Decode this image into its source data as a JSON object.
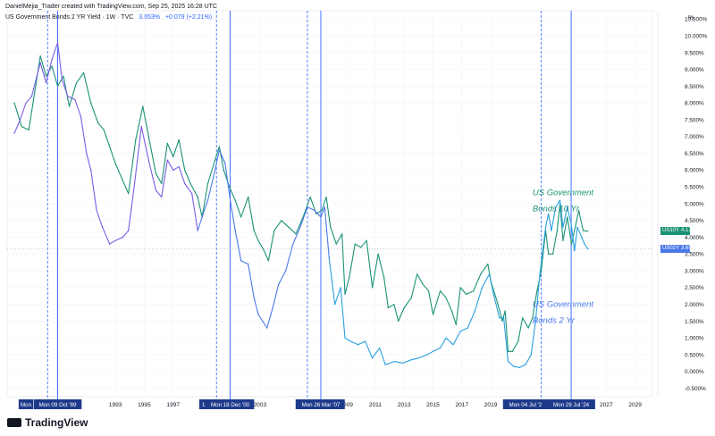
{
  "header": {
    "line1": "DanielMejia_Trader created with TradingView.com, Sep 25, 2025 16:28 UTC",
    "title": "US Government Bonds 2 YR Yield · 1W · TVC",
    "value": "3.653%",
    "change": "+0.079 (+2.21%)"
  },
  "brand": "TradingView",
  "colors": {
    "us10y": "#1a9276",
    "us02y_early": "#7b5ce6",
    "us02y_mid": "#4a79e8",
    "us02y_late": "#2aa0e0",
    "vline": "#2962ff",
    "label_bg": "#1e3a8a",
    "grid": "#f0f3fa"
  },
  "badges": {
    "us10y_label": "US10Y",
    "us10y_value": "4.178%",
    "us02y_label": "US02Y",
    "us02y_value": "3.653%"
  },
  "chart_data": {
    "type": "line",
    "y_unit": "%",
    "ylim": [
      -0.75,
      10.75
    ],
    "xlim": [
      1985.5,
      2030.2
    ],
    "y_ticks": [
      "10.500%",
      "10.000%",
      "9.500%",
      "9.000%",
      "8.500%",
      "8.000%",
      "7.500%",
      "7.000%",
      "6.500%",
      "6.000%",
      "5.500%",
      "5.000%",
      "4.500%",
      "4.000%",
      "3.500%",
      "3.000%",
      "2.500%",
      "2.000%",
      "1.500%",
      "1.000%",
      "0.500%",
      "0.000%",
      "-0.500%"
    ],
    "x_ticks": [
      "1993",
      "1995",
      "1997",
      "2003",
      "2009",
      "2011",
      "2013",
      "2015",
      "2017",
      "2019",
      "2027",
      "2029"
    ],
    "date_labels": [
      {
        "x": 1989.0,
        "text": "Mon 09 Oct '89"
      },
      {
        "x": 2000.95,
        "text": "Mon 18 Dec '00"
      },
      {
        "x": 2007.23,
        "text": "Mon 26 Mar '07"
      },
      {
        "x": 2024.57,
        "text": "Mon 29 Jul '24"
      }
    ],
    "date_labels_partial": [
      {
        "x": 1986.8,
        "text": "Mon"
      },
      {
        "x": 1999.1,
        "text": "1"
      },
      {
        "x": 2006.3,
        "text": "Mon 1("
      },
      {
        "x": 2021.4,
        "text": "Mon 04 Jul '2"
      }
    ],
    "vlines_solid": [
      1989.0,
      2000.95,
      2007.23,
      2024.57
    ],
    "vlines_dashed": [
      1988.3,
      2000.0,
      2006.3,
      2022.5
    ],
    "annotations": [
      {
        "text": "US Government",
        "x": 2021.9,
        "y": 5.25,
        "color": "#1a9276"
      },
      {
        "text": "Bonds 10 Yr",
        "x": 2021.9,
        "y": 4.78,
        "color": "#1a9276"
      },
      {
        "text": "US Government",
        "x": 2021.9,
        "y": 1.92,
        "color": "#4a79e8"
      },
      {
        "text": "Bonds 2 Yr",
        "x": 2021.9,
        "y": 1.45,
        "color": "#4a79e8"
      }
    ],
    "series": [
      {
        "name": "US10Y",
        "points": [
          [
            1986.0,
            8.0
          ],
          [
            1986.5,
            7.3
          ],
          [
            1987.0,
            7.2
          ],
          [
            1987.4,
            8.3
          ],
          [
            1987.8,
            9.4
          ],
          [
            1988.2,
            8.8
          ],
          [
            1988.6,
            9.1
          ],
          [
            1989.0,
            8.5
          ],
          [
            1989.4,
            8.8
          ],
          [
            1989.8,
            7.9
          ],
          [
            1990.3,
            8.6
          ],
          [
            1990.8,
            8.9
          ],
          [
            1991.3,
            8.0
          ],
          [
            1991.8,
            7.4
          ],
          [
            1992.2,
            7.2
          ],
          [
            1992.6,
            6.7
          ],
          [
            1993.0,
            6.2
          ],
          [
            1993.5,
            5.7
          ],
          [
            1993.9,
            5.3
          ],
          [
            1994.4,
            6.9
          ],
          [
            1994.9,
            7.9
          ],
          [
            1995.3,
            7.0
          ],
          [
            1995.8,
            5.9
          ],
          [
            1996.2,
            5.6
          ],
          [
            1996.6,
            6.8
          ],
          [
            1997.0,
            6.4
          ],
          [
            1997.4,
            6.9
          ],
          [
            1997.8,
            6.0
          ],
          [
            1998.2,
            5.6
          ],
          [
            1998.7,
            5.2
          ],
          [
            1999.0,
            4.6
          ],
          [
            1999.4,
            5.6
          ],
          [
            1999.9,
            6.3
          ],
          [
            2000.2,
            6.7
          ],
          [
            2000.5,
            6.0
          ],
          [
            2000.9,
            5.5
          ],
          [
            2001.3,
            5.1
          ],
          [
            2001.7,
            4.6
          ],
          [
            2002.2,
            5.2
          ],
          [
            2002.6,
            4.2
          ],
          [
            2002.9,
            3.9
          ],
          [
            2003.3,
            3.6
          ],
          [
            2003.6,
            3.3
          ],
          [
            2004.0,
            4.2
          ],
          [
            2004.5,
            4.5
          ],
          [
            2005.0,
            4.3
          ],
          [
            2005.5,
            4.1
          ],
          [
            2006.0,
            4.6
          ],
          [
            2006.5,
            5.2
          ],
          [
            2006.9,
            4.7
          ],
          [
            2007.3,
            4.8
          ],
          [
            2007.6,
            5.2
          ],
          [
            2007.9,
            4.3
          ],
          [
            2008.3,
            3.8
          ],
          [
            2008.7,
            4.1
          ],
          [
            2008.9,
            2.3
          ],
          [
            2009.2,
            2.8
          ],
          [
            2009.6,
            3.8
          ],
          [
            2010.0,
            3.7
          ],
          [
            2010.4,
            3.9
          ],
          [
            2010.8,
            2.5
          ],
          [
            2011.2,
            3.5
          ],
          [
            2011.6,
            2.8
          ],
          [
            2011.9,
            1.9
          ],
          [
            2012.3,
            2.0
          ],
          [
            2012.6,
            1.5
          ],
          [
            2013.0,
            1.9
          ],
          [
            2013.5,
            2.2
          ],
          [
            2013.9,
            2.9
          ],
          [
            2014.3,
            2.6
          ],
          [
            2014.7,
            2.4
          ],
          [
            2015.0,
            1.7
          ],
          [
            2015.5,
            2.4
          ],
          [
            2015.9,
            2.2
          ],
          [
            2016.3,
            1.8
          ],
          [
            2016.6,
            1.4
          ],
          [
            2016.9,
            2.5
          ],
          [
            2017.3,
            2.3
          ],
          [
            2017.8,
            2.4
          ],
          [
            2018.3,
            2.9
          ],
          [
            2018.8,
            3.2
          ],
          [
            2019.0,
            2.7
          ],
          [
            2019.5,
            2.0
          ],
          [
            2019.8,
            1.5
          ],
          [
            2020.0,
            1.8
          ],
          [
            2020.2,
            0.6
          ],
          [
            2020.5,
            0.6
          ],
          [
            2020.9,
            0.9
          ],
          [
            2021.2,
            1.6
          ],
          [
            2021.6,
            1.3
          ],
          [
            2021.9,
            1.6
          ],
          [
            2022.2,
            2.4
          ],
          [
            2022.5,
            3.0
          ],
          [
            2022.8,
            4.2
          ],
          [
            2023.0,
            3.5
          ],
          [
            2023.3,
            3.5
          ],
          [
            2023.6,
            4.2
          ],
          [
            2023.8,
            5.0
          ],
          [
            2024.0,
            3.9
          ],
          [
            2024.3,
            4.6
          ],
          [
            2024.6,
            3.8
          ],
          [
            2024.9,
            4.4
          ],
          [
            2025.1,
            4.8
          ],
          [
            2025.4,
            4.2
          ],
          [
            2025.73,
            4.178
          ]
        ]
      },
      {
        "name": "US02Y",
        "points": [
          [
            1986.0,
            7.1
          ],
          [
            1986.4,
            7.5
          ],
          [
            1986.8,
            8.0
          ],
          [
            1987.2,
            8.2
          ],
          [
            1987.8,
            9.2
          ],
          [
            1988.2,
            8.6
          ],
          [
            1988.6,
            9.3
          ],
          [
            1989.0,
            9.8
          ],
          [
            1989.3,
            8.7
          ],
          [
            1989.7,
            8.2
          ],
          [
            1990.2,
            8.1
          ],
          [
            1990.6,
            7.6
          ],
          [
            1991.0,
            6.5
          ],
          [
            1991.3,
            6.0
          ],
          [
            1991.7,
            4.8
          ],
          [
            1992.1,
            4.3
          ],
          [
            1992.6,
            3.8
          ],
          [
            1993.0,
            3.9
          ],
          [
            1993.5,
            4.0
          ],
          [
            1993.9,
            4.2
          ],
          [
            1994.3,
            5.5
          ],
          [
            1994.8,
            7.3
          ],
          [
            1995.3,
            6.3
          ],
          [
            1995.8,
            5.4
          ],
          [
            1996.2,
            5.2
          ],
          [
            1996.6,
            6.3
          ],
          [
            1997.0,
            6.0
          ],
          [
            1997.4,
            6.1
          ],
          [
            1997.8,
            5.6
          ],
          [
            1998.3,
            5.3
          ],
          [
            1998.7,
            4.2
          ],
          [
            1999.0,
            4.6
          ],
          [
            1999.4,
            5.1
          ],
          [
            1999.9,
            6.0
          ],
          [
            2000.2,
            6.6
          ],
          [
            2000.6,
            6.2
          ],
          [
            2000.95,
            5.1
          ],
          [
            2001.3,
            4.2
          ],
          [
            2001.7,
            3.3
          ],
          [
            2002.2,
            3.2
          ],
          [
            2002.6,
            2.2
          ],
          [
            2002.9,
            1.7
          ],
          [
            2003.2,
            1.5
          ],
          [
            2003.5,
            1.3
          ],
          [
            2003.9,
            1.9
          ],
          [
            2004.3,
            2.6
          ],
          [
            2004.8,
            3.0
          ],
          [
            2005.3,
            3.8
          ],
          [
            2005.8,
            4.3
          ],
          [
            2006.3,
            4.9
          ],
          [
            2006.8,
            4.8
          ],
          [
            2007.23,
            4.6
          ],
          [
            2007.5,
            4.9
          ],
          [
            2007.8,
            3.4
          ],
          [
            2008.2,
            2.0
          ],
          [
            2008.6,
            2.5
          ],
          [
            2008.9,
            1.0
          ],
          [
            2009.3,
            0.9
          ],
          [
            2009.8,
            0.8
          ],
          [
            2010.3,
            0.9
          ],
          [
            2010.8,
            0.4
          ],
          [
            2011.3,
            0.7
          ],
          [
            2011.7,
            0.2
          ],
          [
            2012.3,
            0.3
          ],
          [
            2012.9,
            0.25
          ],
          [
            2013.5,
            0.35
          ],
          [
            2014.0,
            0.4
          ],
          [
            2014.6,
            0.5
          ],
          [
            2015.0,
            0.6
          ],
          [
            2015.5,
            0.7
          ],
          [
            2015.9,
            1.0
          ],
          [
            2016.4,
            0.8
          ],
          [
            2016.9,
            1.2
          ],
          [
            2017.4,
            1.3
          ],
          [
            2017.9,
            1.8
          ],
          [
            2018.4,
            2.5
          ],
          [
            2018.9,
            2.9
          ],
          [
            2019.2,
            2.3
          ],
          [
            2019.6,
            1.6
          ],
          [
            2019.9,
            1.6
          ],
          [
            2020.2,
            0.3
          ],
          [
            2020.6,
            0.15
          ],
          [
            2021.0,
            0.12
          ],
          [
            2021.4,
            0.2
          ],
          [
            2021.8,
            0.5
          ],
          [
            2022.1,
            1.5
          ],
          [
            2022.4,
            2.9
          ],
          [
            2022.8,
            4.3
          ],
          [
            2023.0,
            4.7
          ],
          [
            2023.2,
            4.2
          ],
          [
            2023.5,
            4.9
          ],
          [
            2023.8,
            5.1
          ],
          [
            2024.0,
            4.3
          ],
          [
            2024.3,
            4.9
          ],
          [
            2024.57,
            4.4
          ],
          [
            2024.8,
            3.6
          ],
          [
            2025.0,
            4.3
          ],
          [
            2025.3,
            4.0
          ],
          [
            2025.5,
            3.8
          ],
          [
            2025.73,
            3.653
          ]
        ]
      }
    ]
  }
}
